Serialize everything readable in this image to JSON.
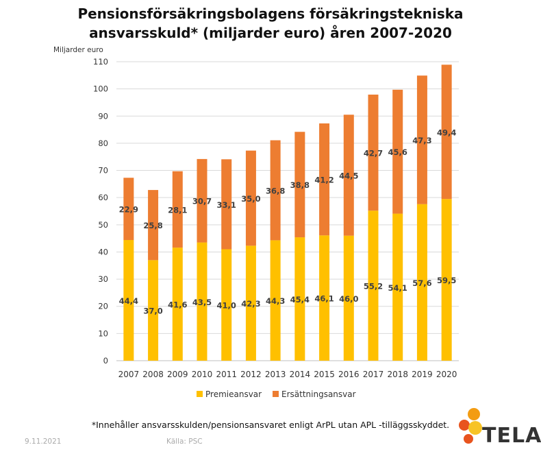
{
  "title_line1": "Pensionsförsäkringsbolagens försäkringstekniska",
  "title_line2": "ansvarsskuld* (miljarder euro) åren 2007-2020",
  "footnote": "*Innehåller ansvarsskulden/pensionsansvaret enligt ArPL utan APL -tilläggsskyddet.",
  "date": "9.11.2021",
  "source": "Källa: PSC",
  "logo": {
    "text": "TELA"
  },
  "colors": {
    "premie": "#ffc000",
    "ersattning": "#ed7d31",
    "grid": "#d9d9d9"
  },
  "chart_data": {
    "type": "bar",
    "stacked": true,
    "ylabel": "Miljarder euro",
    "ylim": [
      0,
      110
    ],
    "yticks": [
      0,
      10,
      20,
      30,
      40,
      50,
      60,
      70,
      80,
      90,
      100,
      110
    ],
    "categories": [
      "2007",
      "2008",
      "2009",
      "2010",
      "2011",
      "2012",
      "2013",
      "2014",
      "2015",
      "2016",
      "2017",
      "2018",
      "2019",
      "2020"
    ],
    "series": [
      {
        "name": "Premieansvar",
        "values": [
          44.4,
          37.0,
          41.6,
          43.5,
          41.0,
          42.3,
          44.3,
          45.4,
          46.1,
          46.0,
          55.2,
          54.1,
          57.6,
          59.5
        ],
        "labels": [
          "44,4",
          "37,0",
          "41,6",
          "43,5",
          "41,0",
          "42,3",
          "44,3",
          "45,4",
          "46,1",
          "46,0",
          "55,2",
          "54,1",
          "57,6",
          "59,5"
        ]
      },
      {
        "name": "Ersättningsansvar",
        "values": [
          22.9,
          25.8,
          28.1,
          30.7,
          33.1,
          35.0,
          36.8,
          38.8,
          41.2,
          44.5,
          42.7,
          45.6,
          47.3,
          49.4
        ],
        "labels": [
          "22,9",
          "25,8",
          "28,1",
          "30,7",
          "33,1",
          "35,0",
          "36,8",
          "38,8",
          "41,2",
          "44,5",
          "42,7",
          "45,6",
          "47,3",
          "49,4"
        ]
      }
    ],
    "grid": true,
    "legend": "bottom"
  }
}
